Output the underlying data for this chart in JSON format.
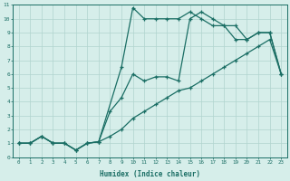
{
  "xlabel": "Humidex (Indice chaleur)",
  "xlim": [
    -0.5,
    23.5
  ],
  "ylim": [
    0,
    11
  ],
  "xticks": [
    0,
    1,
    2,
    3,
    4,
    5,
    6,
    7,
    8,
    9,
    10,
    11,
    12,
    13,
    14,
    15,
    16,
    17,
    18,
    19,
    20,
    21,
    22,
    23
  ],
  "yticks": [
    0,
    1,
    2,
    3,
    4,
    5,
    6,
    7,
    8,
    9,
    10,
    11
  ],
  "bg_color": "#d6eeea",
  "line_color": "#1a6e64",
  "grid_color": "#b0d4ce",
  "line1_x": [
    0,
    1,
    2,
    3,
    4,
    5,
    6,
    7,
    8,
    9,
    10,
    11,
    12,
    13,
    14,
    15,
    16,
    17,
    18,
    19,
    20,
    21,
    22,
    23
  ],
  "line1_y": [
    1,
    1,
    1.5,
    1,
    1,
    0.5,
    1,
    1.1,
    3.3,
    4.3,
    6.0,
    5.5,
    5.8,
    5.8,
    5.5,
    10.0,
    10.5,
    10.0,
    9.5,
    9.5,
    8.5,
    9.0,
    9.0,
    6.0
  ],
  "line2_x": [
    0,
    1,
    2,
    3,
    4,
    5,
    6,
    7,
    9,
    10,
    11,
    12,
    13,
    14,
    15,
    16,
    17,
    18,
    19,
    20,
    21,
    22,
    23
  ],
  "line2_y": [
    1,
    1,
    1.5,
    1,
    1,
    0.5,
    1,
    1.1,
    6.5,
    10.8,
    10.0,
    10.0,
    10.0,
    10.0,
    10.5,
    10.0,
    9.5,
    9.5,
    8.5,
    8.5,
    9.0,
    9.0,
    6.0
  ],
  "line3_x": [
    0,
    1,
    2,
    3,
    4,
    5,
    6,
    7,
    8,
    9,
    10,
    11,
    12,
    13,
    14,
    15,
    16,
    17,
    18,
    19,
    20,
    21,
    22,
    23
  ],
  "line3_y": [
    1,
    1,
    1.5,
    1,
    1,
    0.5,
    1,
    1.1,
    1.5,
    2.0,
    2.8,
    3.3,
    3.8,
    4.3,
    4.8,
    5.0,
    5.5,
    6.0,
    6.5,
    7.0,
    7.5,
    8.0,
    8.5,
    6.0
  ]
}
